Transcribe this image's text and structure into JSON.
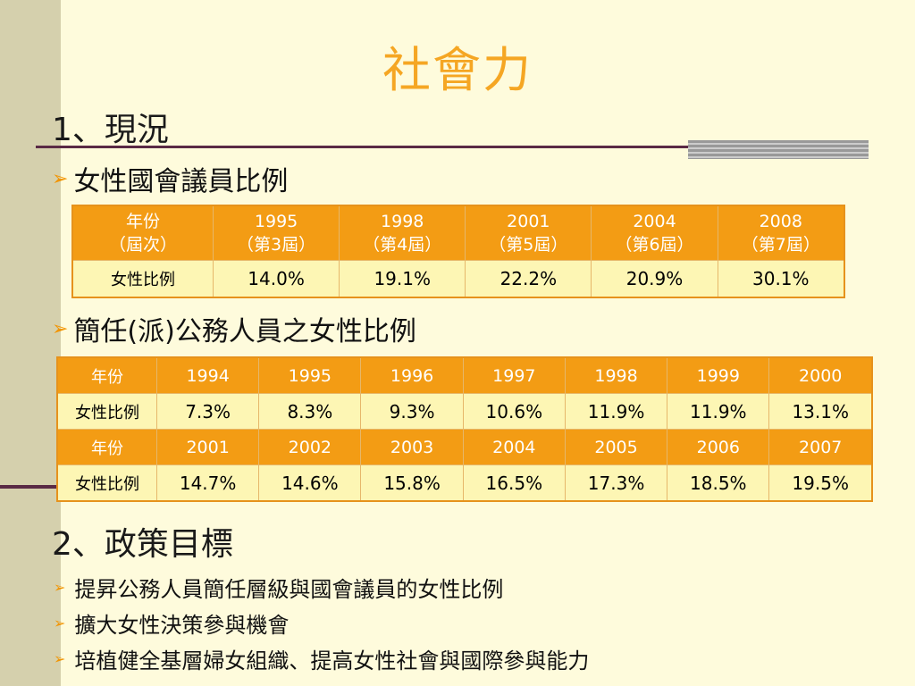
{
  "slide": {
    "title": "社會力",
    "section1": "1、現況",
    "bullet1": "女性國會議員比例",
    "bullet2": "簡任(派)公務人員之女性比例",
    "section2": "2、政策目標",
    "goals": [
      "提昇公務人員簡任層級與國會議員的女性比例",
      "擴大女性決策參與機會",
      "培植健全基層婦女組織、提高女性社會與國際參與能力"
    ]
  },
  "table1": {
    "header": [
      {
        "line1": "年份",
        "line2": "（屆次）"
      },
      {
        "line1": "1995",
        "line2": "（第3屆）"
      },
      {
        "line1": "1998",
        "line2": "（第4屆）"
      },
      {
        "line1": "2001",
        "line2": "（第5屆）"
      },
      {
        "line1": "2004",
        "line2": "（第6屆）"
      },
      {
        "line1": "2008",
        "line2": "（第7屆）"
      }
    ],
    "row": [
      "女性比例",
      "14.0%",
      "19.1%",
      "22.2%",
      "20.9%",
      "30.1%"
    ]
  },
  "table2": {
    "rows": [
      {
        "type": "hdr",
        "cells": [
          "年份",
          "1994",
          "1995",
          "1996",
          "1997",
          "1998",
          "1999",
          "2000"
        ]
      },
      {
        "type": "val",
        "cells": [
          "女性比例",
          "7.3%",
          "8.3%",
          "9.3%",
          "10.6%",
          "11.9%",
          "11.9%",
          "13.1%"
        ]
      },
      {
        "type": "hdr",
        "cells": [
          "年份",
          "2001",
          "2002",
          "2003",
          "2004",
          "2005",
          "2006",
          "2007"
        ]
      },
      {
        "type": "val",
        "cells": [
          "女性比例",
          "14.7%",
          "14.6%",
          "15.8%",
          "16.5%",
          "17.3%",
          "18.5%",
          "19.5%"
        ]
      }
    ]
  },
  "colors": {
    "title": "#f5a623",
    "header_fill": "#f39c14",
    "value_fill": "#fdf6b4",
    "background": "#fefbdc",
    "bullet_arrow": "#f29400"
  },
  "icons": {
    "bullet": "arrowhead-bullet-icon"
  }
}
